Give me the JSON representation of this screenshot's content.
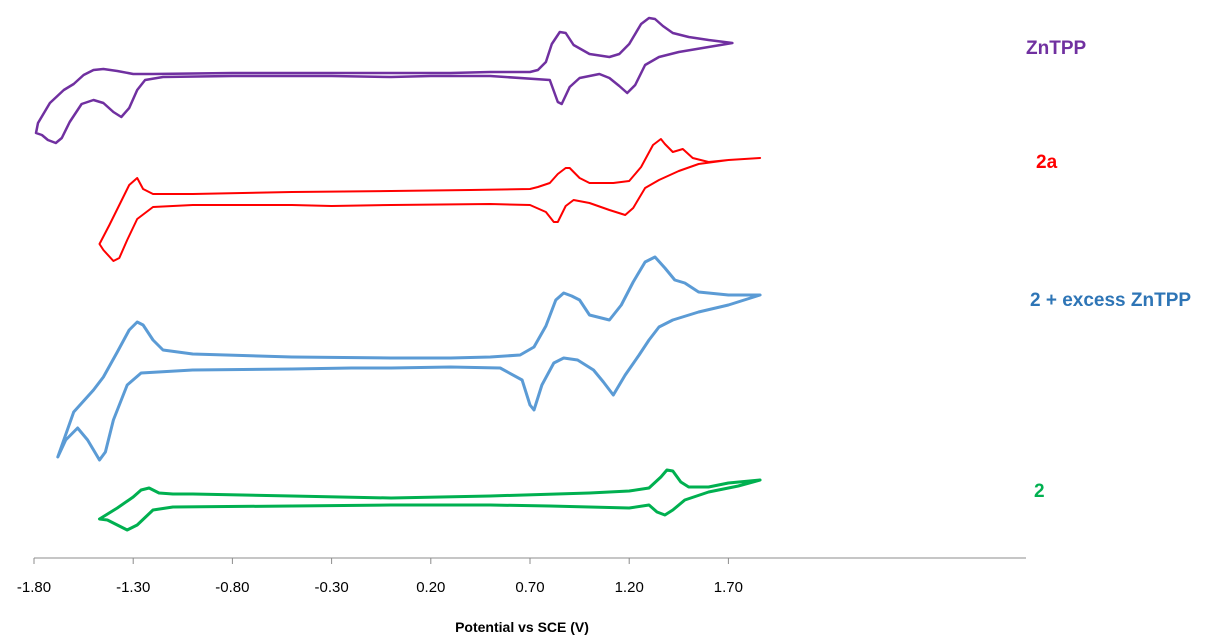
{
  "chart_data": {
    "type": "line",
    "title": "",
    "xlabel": "Potential vs SCE (V)",
    "ylabel": "",
    "xlim": [
      -1.8,
      1.9
    ],
    "x_ticks": [
      "-1.80",
      "-1.30",
      "-0.80",
      "-0.30",
      "0.20",
      "0.70",
      "1.20",
      "1.70"
    ],
    "grid": false,
    "legend": "inline labels at right of each trace",
    "series": [
      {
        "name": "ZnTPP",
        "color": "#7030A0",
        "line_width": 2.5,
        "points": [
          [
            1.72,
            43
          ],
          [
            1.6,
            40
          ],
          [
            1.5,
            37
          ],
          [
            1.42,
            33
          ],
          [
            1.37,
            26
          ],
          [
            1.33,
            19
          ],
          [
            1.3,
            18
          ],
          [
            1.26,
            24
          ],
          [
            1.2,
            44
          ],
          [
            1.15,
            54
          ],
          [
            1.1,
            57
          ],
          [
            1.0,
            54
          ],
          [
            0.92,
            45
          ],
          [
            0.88,
            33
          ],
          [
            0.85,
            32
          ],
          [
            0.81,
            44
          ],
          [
            0.78,
            62
          ],
          [
            0.74,
            70
          ],
          [
            0.7,
            72
          ],
          [
            0.5,
            72
          ],
          [
            0.3,
            73
          ],
          [
            0.0,
            73
          ],
          [
            -0.3,
            73
          ],
          [
            -0.8,
            73
          ],
          [
            -1.2,
            74
          ],
          [
            -1.3,
            74
          ],
          [
            -1.38,
            71
          ],
          [
            -1.45,
            69
          ],
          [
            -1.5,
            70
          ],
          [
            -1.55,
            75
          ],
          [
            -1.6,
            84
          ],
          [
            -1.65,
            90
          ],
          [
            -1.72,
            103
          ],
          [
            -1.78,
            123
          ],
          [
            -1.79,
            133
          ],
          [
            -1.76,
            135
          ],
          [
            -1.73,
            140
          ],
          [
            -1.69,
            143
          ],
          [
            -1.66,
            138
          ],
          [
            -1.62,
            122
          ],
          [
            -1.56,
            104
          ],
          [
            -1.5,
            100
          ],
          [
            -1.45,
            103
          ],
          [
            -1.4,
            112
          ],
          [
            -1.36,
            117
          ],
          [
            -1.32,
            108
          ],
          [
            -1.28,
            90
          ],
          [
            -1.24,
            80
          ],
          [
            -1.15,
            77
          ],
          [
            -0.8,
            76
          ],
          [
            -0.3,
            76
          ],
          [
            0.0,
            77
          ],
          [
            0.2,
            76
          ],
          [
            0.5,
            76
          ],
          [
            0.8,
            80
          ],
          [
            0.84,
            102
          ],
          [
            0.86,
            104
          ],
          [
            0.9,
            87
          ],
          [
            0.95,
            78
          ],
          [
            1.05,
            74
          ],
          [
            1.1,
            78
          ],
          [
            1.15,
            86
          ],
          [
            1.19,
            93
          ],
          [
            1.23,
            85
          ],
          [
            1.28,
            65
          ],
          [
            1.35,
            57
          ],
          [
            1.45,
            52
          ],
          [
            1.6,
            47
          ],
          [
            1.72,
            43
          ]
        ]
      },
      {
        "name": "2a",
        "color": "#FF0000",
        "line_width": 2,
        "points": [
          [
            1.86,
            158
          ],
          [
            1.7,
            160
          ],
          [
            1.6,
            162
          ],
          [
            1.52,
            158
          ],
          [
            1.47,
            149
          ],
          [
            1.42,
            152
          ],
          [
            1.38,
            144
          ],
          [
            1.36,
            139
          ],
          [
            1.32,
            145
          ],
          [
            1.26,
            167
          ],
          [
            1.2,
            181
          ],
          [
            1.12,
            183
          ],
          [
            1.0,
            183
          ],
          [
            0.95,
            178
          ],
          [
            0.9,
            168
          ],
          [
            0.88,
            168
          ],
          [
            0.84,
            174
          ],
          [
            0.8,
            183
          ],
          [
            0.74,
            187
          ],
          [
            0.7,
            189
          ],
          [
            0.4,
            190
          ],
          [
            0.0,
            191
          ],
          [
            -0.5,
            192
          ],
          [
            -1.0,
            194
          ],
          [
            -1.2,
            194
          ],
          [
            -1.25,
            189
          ],
          [
            -1.28,
            178
          ],
          [
            -1.32,
            185
          ],
          [
            -1.36,
            201
          ],
          [
            -1.42,
            225
          ],
          [
            -1.47,
            244
          ],
          [
            -1.45,
            250
          ],
          [
            -1.4,
            261
          ],
          [
            -1.37,
            258
          ],
          [
            -1.33,
            240
          ],
          [
            -1.28,
            219
          ],
          [
            -1.2,
            207
          ],
          [
            -1.0,
            205
          ],
          [
            -0.5,
            205
          ],
          [
            -0.3,
            206
          ],
          [
            0.0,
            205
          ],
          [
            0.5,
            204
          ],
          [
            0.7,
            205
          ],
          [
            0.78,
            212
          ],
          [
            0.82,
            222
          ],
          [
            0.84,
            222
          ],
          [
            0.88,
            206
          ],
          [
            0.92,
            200
          ],
          [
            1.0,
            203
          ],
          [
            1.1,
            210
          ],
          [
            1.18,
            215
          ],
          [
            1.22,
            208
          ],
          [
            1.28,
            188
          ],
          [
            1.35,
            180
          ],
          [
            1.45,
            171
          ],
          [
            1.55,
            164
          ],
          [
            1.7,
            160
          ],
          [
            1.86,
            158
          ]
        ]
      },
      {
        "name": "2 + excess ZnTPP",
        "color": "#5B9BD5",
        "line_width": 3,
        "points": [
          [
            1.86,
            295
          ],
          [
            1.7,
            295
          ],
          [
            1.55,
            292
          ],
          [
            1.48,
            283
          ],
          [
            1.43,
            280
          ],
          [
            1.38,
            268
          ],
          [
            1.33,
            257
          ],
          [
            1.28,
            262
          ],
          [
            1.22,
            282
          ],
          [
            1.16,
            305
          ],
          [
            1.1,
            320
          ],
          [
            1.0,
            315
          ],
          [
            0.95,
            300
          ],
          [
            0.91,
            296
          ],
          [
            0.87,
            293
          ],
          [
            0.83,
            300
          ],
          [
            0.78,
            326
          ],
          [
            0.72,
            347
          ],
          [
            0.65,
            355
          ],
          [
            0.5,
            357
          ],
          [
            0.3,
            358
          ],
          [
            0.0,
            358
          ],
          [
            -0.5,
            357
          ],
          [
            -1.0,
            354
          ],
          [
            -1.15,
            350
          ],
          [
            -1.2,
            340
          ],
          [
            -1.25,
            325
          ],
          [
            -1.28,
            322
          ],
          [
            -1.32,
            330
          ],
          [
            -1.38,
            352
          ],
          [
            -1.45,
            377
          ],
          [
            -1.5,
            390
          ],
          [
            -1.6,
            412
          ],
          [
            -1.68,
            457
          ],
          [
            -1.64,
            440
          ],
          [
            -1.58,
            428
          ],
          [
            -1.53,
            440
          ],
          [
            -1.47,
            460
          ],
          [
            -1.44,
            452
          ],
          [
            -1.4,
            420
          ],
          [
            -1.33,
            385
          ],
          [
            -1.26,
            373
          ],
          [
            -1.0,
            370
          ],
          [
            -0.5,
            369
          ],
          [
            -0.2,
            368
          ],
          [
            0.0,
            368
          ],
          [
            0.3,
            367
          ],
          [
            0.55,
            368
          ],
          [
            0.66,
            380
          ],
          [
            0.7,
            405
          ],
          [
            0.72,
            410
          ],
          [
            0.76,
            385
          ],
          [
            0.82,
            363
          ],
          [
            0.87,
            358
          ],
          [
            0.94,
            360
          ],
          [
            1.02,
            370
          ],
          [
            1.07,
            382
          ],
          [
            1.12,
            395
          ],
          [
            1.18,
            375
          ],
          [
            1.25,
            355
          ],
          [
            1.3,
            340
          ],
          [
            1.35,
            327
          ],
          [
            1.42,
            320
          ],
          [
            1.55,
            312
          ],
          [
            1.7,
            305
          ],
          [
            1.86,
            295
          ]
        ]
      },
      {
        "name": "2",
        "color": "#00B050",
        "line_width": 3,
        "points": [
          [
            1.86,
            480
          ],
          [
            1.7,
            483
          ],
          [
            1.6,
            487
          ],
          [
            1.5,
            487
          ],
          [
            1.46,
            482
          ],
          [
            1.42,
            471
          ],
          [
            1.39,
            470
          ],
          [
            1.36,
            477
          ],
          [
            1.3,
            488
          ],
          [
            1.2,
            491
          ],
          [
            1.0,
            493
          ],
          [
            0.5,
            496
          ],
          [
            0.0,
            498
          ],
          [
            -0.5,
            496
          ],
          [
            -1.0,
            494
          ],
          [
            -1.1,
            494
          ],
          [
            -1.17,
            493
          ],
          [
            -1.22,
            488
          ],
          [
            -1.26,
            490
          ],
          [
            -1.3,
            497
          ],
          [
            -1.38,
            508
          ],
          [
            -1.47,
            519
          ],
          [
            -1.43,
            520
          ],
          [
            -1.38,
            525
          ],
          [
            -1.33,
            530
          ],
          [
            -1.28,
            525
          ],
          [
            -1.2,
            510
          ],
          [
            -1.1,
            507
          ],
          [
            -0.5,
            506
          ],
          [
            0.0,
            505
          ],
          [
            0.5,
            505
          ],
          [
            0.8,
            506
          ],
          [
            1.2,
            508
          ],
          [
            1.3,
            505
          ],
          [
            1.34,
            512
          ],
          [
            1.38,
            515
          ],
          [
            1.42,
            510
          ],
          [
            1.48,
            500
          ],
          [
            1.6,
            492
          ],
          [
            1.75,
            486
          ],
          [
            1.86,
            480
          ]
        ]
      }
    ]
  },
  "labels": {
    "ZnTPP": "ZnTPP",
    "2a": "2a",
    "2 + excess ZnTPP": "2 + excess ZnTPP",
    "2": "2"
  }
}
